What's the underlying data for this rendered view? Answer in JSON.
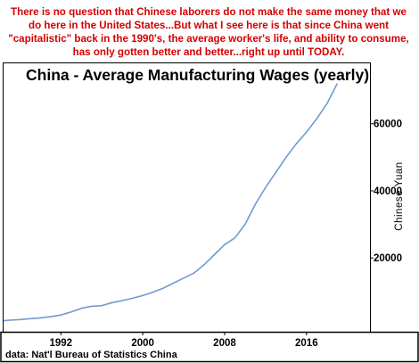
{
  "commentary": "There is no question that Chinese laborers do not make the same money that we do here in the United States...But what I see here is that since China went \"capitalistic\" back in the 1990's, the average worker's life, and ability to consume, has only gotten better and better...right up until TODAY.",
  "source_note": "data: Nat'l Bureau of Statistics China",
  "colors": {
    "commentary": "#d40000",
    "line": "#6f9bd0",
    "frame": "#000000"
  },
  "chart_data": {
    "type": "line",
    "title": "China - Average Manufacturing Wages (yearly)",
    "ylabel": "Chinese Yuan",
    "xlabel": "",
    "xlim": [
      1986.4,
      2022.2
    ],
    "ylim": [
      -2000,
      78000
    ],
    "x_ticks": [
      1992,
      2000,
      2008,
      2016
    ],
    "y_ticks": [
      20000,
      40000,
      60000
    ],
    "y_axis_side": "right",
    "grid": false,
    "legend": "none",
    "series": [
      {
        "x": [
          1986,
          1987,
          1988,
          1989,
          1990,
          1991,
          1992,
          1993,
          1994,
          1995,
          1996,
          1997,
          1998,
          1999,
          2000,
          2001,
          2002,
          2003,
          2004,
          2005,
          2006,
          2007,
          2008,
          2009,
          2010,
          2011,
          2012,
          2013,
          2014,
          2015,
          2016,
          2017,
          2018,
          2019
        ],
        "y": [
          1300,
          1450,
          1650,
          1900,
          2150,
          2500,
          3000,
          3900,
          5000,
          5600,
          5800,
          6700,
          7300,
          8000,
          8800,
          9800,
          11000,
          12500,
          14000,
          15500,
          18000,
          21000,
          24000,
          26000,
          30000,
          36000,
          41000,
          45500,
          50000,
          54000,
          57500,
          61500,
          66000,
          72000
        ]
      }
    ]
  }
}
